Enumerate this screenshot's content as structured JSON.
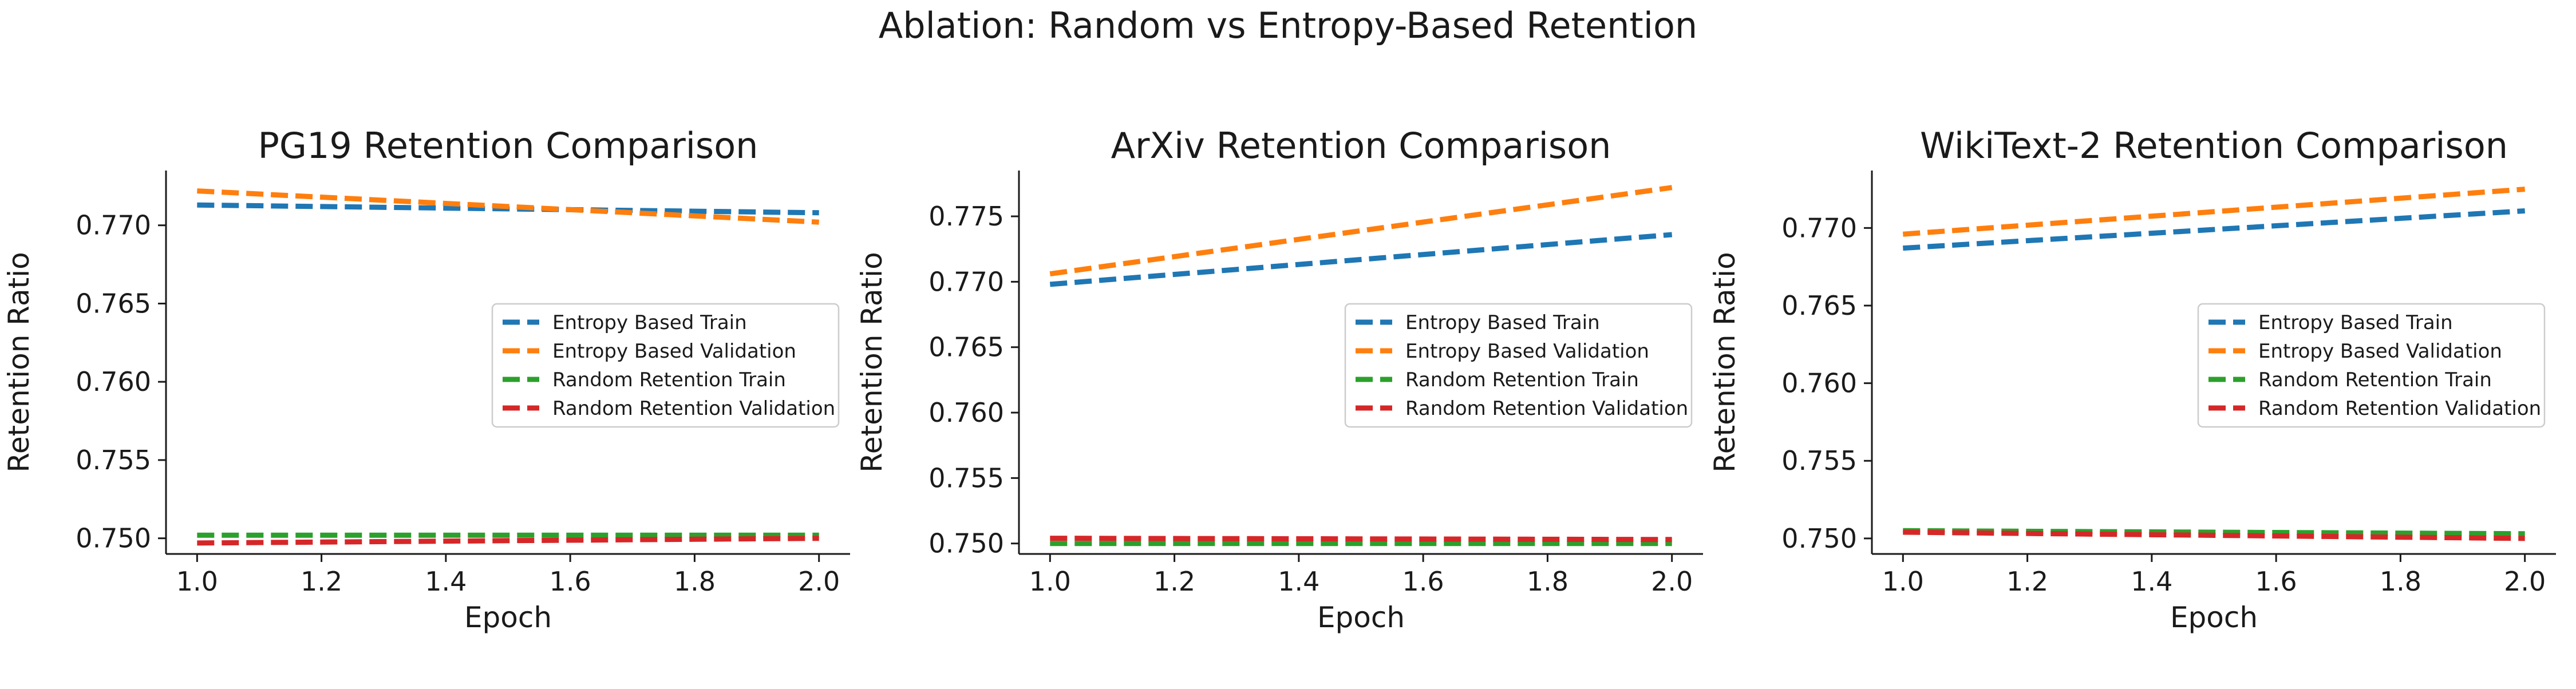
{
  "title": "Ablation: Random vs Entropy-Based Retention",
  "colors": {
    "entropy_train": "#1f77b4",
    "entropy_val": "#ff7f0e",
    "random_train": "#2ca02c",
    "random_val": "#d62728",
    "axis": "#1a1a1a",
    "legend_border": "#cccccc"
  },
  "chart_data": [
    {
      "type": "line",
      "title": "PG19 Retention Comparison",
      "xlabel": "Epoch",
      "ylabel": "Retention Ratio",
      "xlim": [
        0.95,
        2.05
      ],
      "ylim": [
        0.749,
        0.7735
      ],
      "xticks": [
        1.0,
        1.2,
        1.4,
        1.6,
        1.8,
        2.0
      ],
      "xtick_labels": [
        "1.0",
        "1.2",
        "1.4",
        "1.6",
        "1.8",
        "2.0"
      ],
      "yticks": [
        0.75,
        0.755,
        0.76,
        0.765,
        0.77
      ],
      "ytick_labels": [
        "0.750",
        "0.755",
        "0.760",
        "0.765",
        "0.770"
      ],
      "grid": false,
      "legend_position": "center-right",
      "linestyle": "dashed",
      "x": [
        1.0,
        2.0
      ],
      "series": [
        {
          "name": "Entropy Based Train",
          "color_key": "entropy_train",
          "values": [
            0.7713,
            0.7708
          ]
        },
        {
          "name": "Entropy Based Validation",
          "color_key": "entropy_val",
          "values": [
            0.7722,
            0.7702
          ]
        },
        {
          "name": "Random Retention Train",
          "color_key": "random_train",
          "values": [
            0.7502,
            0.7502
          ]
        },
        {
          "name": "Random Retention Validation",
          "color_key": "random_val",
          "values": [
            0.7497,
            0.75
          ]
        }
      ]
    },
    {
      "type": "line",
      "title": "ArXiv Retention Comparison",
      "xlabel": "Epoch",
      "ylabel": "Retention Ratio",
      "xlim": [
        0.95,
        2.05
      ],
      "ylim": [
        0.7492,
        0.7785
      ],
      "xticks": [
        1.0,
        1.2,
        1.4,
        1.6,
        1.8,
        2.0
      ],
      "xtick_labels": [
        "1.0",
        "1.2",
        "1.4",
        "1.6",
        "1.8",
        "2.0"
      ],
      "yticks": [
        0.75,
        0.755,
        0.76,
        0.765,
        0.77,
        0.775
      ],
      "ytick_labels": [
        "0.750",
        "0.755",
        "0.760",
        "0.765",
        "0.770",
        "0.775"
      ],
      "grid": false,
      "legend_position": "center-right",
      "linestyle": "dashed",
      "x": [
        1.0,
        2.0
      ],
      "series": [
        {
          "name": "Entropy Based Train",
          "color_key": "entropy_train",
          "values": [
            0.7698,
            0.7736
          ]
        },
        {
          "name": "Entropy Based Validation",
          "color_key": "entropy_val",
          "values": [
            0.7706,
            0.7772
          ]
        },
        {
          "name": "Random Retention Train",
          "color_key": "random_train",
          "values": [
            0.75,
            0.75
          ]
        },
        {
          "name": "Random Retention Validation",
          "color_key": "random_val",
          "values": [
            0.7504,
            0.7503
          ]
        }
      ]
    },
    {
      "type": "line",
      "title": "WikiText-2 Retention Comparison",
      "xlabel": "Epoch",
      "ylabel": "Retention Ratio",
      "xlim": [
        0.95,
        2.05
      ],
      "ylim": [
        0.749,
        0.7737
      ],
      "xticks": [
        1.0,
        1.2,
        1.4,
        1.6,
        1.8,
        2.0
      ],
      "xtick_labels": [
        "1.0",
        "1.2",
        "1.4",
        "1.6",
        "1.8",
        "2.0"
      ],
      "yticks": [
        0.75,
        0.755,
        0.76,
        0.765,
        0.77
      ],
      "ytick_labels": [
        "0.750",
        "0.755",
        "0.760",
        "0.765",
        "0.770"
      ],
      "grid": false,
      "legend_position": "center-right",
      "linestyle": "dashed",
      "x": [
        1.0,
        2.0
      ],
      "series": [
        {
          "name": "Entropy Based Train",
          "color_key": "entropy_train",
          "values": [
            0.7687,
            0.7711
          ]
        },
        {
          "name": "Entropy Based Validation",
          "color_key": "entropy_val",
          "values": [
            0.7696,
            0.7725
          ]
        },
        {
          "name": "Random Retention Train",
          "color_key": "random_train",
          "values": [
            0.7505,
            0.7503
          ]
        },
        {
          "name": "Random Retention Validation",
          "color_key": "random_val",
          "values": [
            0.7504,
            0.75
          ]
        }
      ]
    }
  ]
}
